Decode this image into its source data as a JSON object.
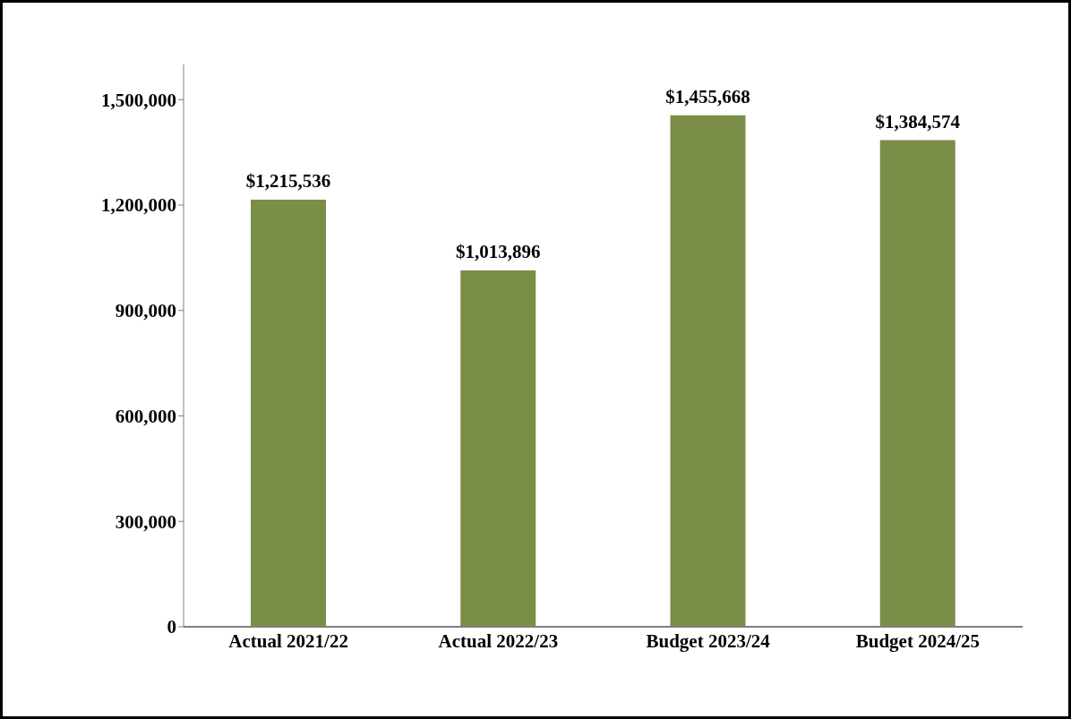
{
  "chart_data": {
    "type": "bar",
    "categories": [
      "Actual 2021/22",
      "Actual 2022/23",
      "Budget 2023/24",
      "Budget 2024/25"
    ],
    "values": [
      1215536,
      1013896,
      1455668,
      1384574
    ],
    "value_labels": [
      "$1,215,536",
      "$1,013,896",
      "$1,455,668",
      "$1,384,574"
    ],
    "color": "#7a8e47",
    "ylim": [
      0,
      1600000
    ],
    "yticks": [
      {
        "value": 0,
        "label": "0"
      },
      {
        "value": 300000,
        "label": "300,000"
      },
      {
        "value": 600000,
        "label": "600,000"
      },
      {
        "value": 900000,
        "label": "900,000"
      },
      {
        "value": 1200000,
        "label": "1,200,000"
      },
      {
        "value": 1500000,
        "label": "1,500,000"
      }
    ],
    "grid": false,
    "legend": false
  }
}
